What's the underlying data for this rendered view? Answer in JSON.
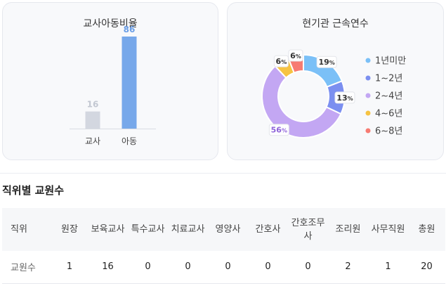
{
  "ratio_card": {
    "title": "교사아동비율",
    "chart_data": {
      "type": "bar",
      "title": "교사아동비율",
      "categories": [
        "교사",
        "아동"
      ],
      "values": [
        16,
        86
      ],
      "ylim": [
        0,
        86
      ],
      "colors": [
        "#d3d7e0",
        "#77a8ea"
      ],
      "label_colors": [
        "#c3c8d2",
        "#6a9ee6"
      ],
      "grid": false
    }
  },
  "tenure_card": {
    "title": "현기관 근속연수",
    "chart_data": {
      "type": "pie",
      "title": "현기관 근속연수",
      "categories": [
        "1년미만",
        "1~2년",
        "2~4년",
        "4~6년",
        "6~8년"
      ],
      "values": [
        19,
        13,
        56,
        6,
        6
      ],
      "colors": [
        "#7bc0f7",
        "#7b8ff0",
        "#c3a7f3",
        "#f6c342",
        "#f77b72"
      ],
      "legend_position": "right"
    }
  },
  "section": {
    "title": "직위별 교원수"
  },
  "table": {
    "headers": [
      "직위",
      "원장",
      "보육교사",
      "특수교사",
      "치료교사",
      "영양사",
      "간호사",
      "간호조무사",
      "조리원",
      "사무직원",
      "총원"
    ],
    "rows": [
      [
        "교원수",
        "1",
        "16",
        "0",
        "0",
        "0",
        "0",
        "0",
        "2",
        "1",
        "20"
      ]
    ]
  }
}
